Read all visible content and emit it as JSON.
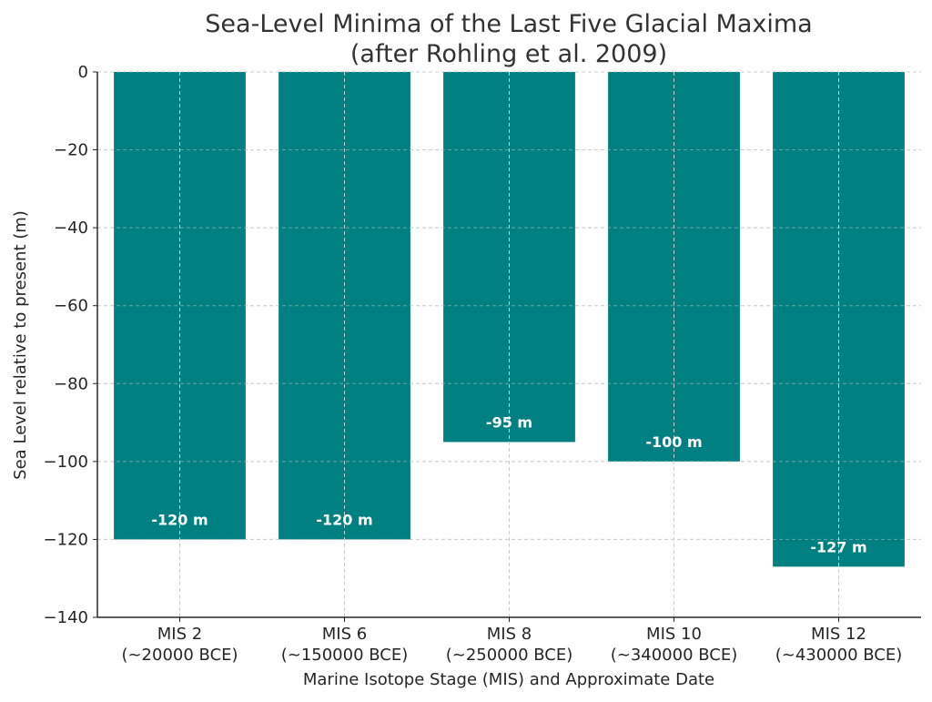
{
  "chart_data": {
    "type": "bar",
    "title": "Sea-Level Minima of the Last Five Glacial Maxima",
    "subtitle": "(after Rohling et al. 2009)",
    "xlabel": "Marine Isotope Stage (MIS) and Approximate Date",
    "ylabel": "Sea Level relative to present (m)",
    "categories": [
      {
        "stage": "MIS 2",
        "date": "(~20000 BCE)"
      },
      {
        "stage": "MIS 6",
        "date": "(~150000 BCE)"
      },
      {
        "stage": "MIS 8",
        "date": "(~250000 BCE)"
      },
      {
        "stage": "MIS 10",
        "date": "(~340000 BCE)"
      },
      {
        "stage": "MIS 12",
        "date": "(~430000 BCE)"
      }
    ],
    "values": [
      -120,
      -120,
      -95,
      -100,
      -127
    ],
    "data_labels": [
      "-120 m",
      "-120 m",
      "-95 m",
      "-100 m",
      "-127 m"
    ],
    "ylim": [
      -140,
      0
    ],
    "yticks": [
      0,
      -20,
      -40,
      -60,
      -80,
      -100,
      -120,
      -140
    ],
    "ytick_labels": [
      "0",
      "−20",
      "−40",
      "−60",
      "−80",
      "−100",
      "−120",
      "−140"
    ],
    "grid": true,
    "bar_color": "#008080",
    "legend": "none"
  }
}
